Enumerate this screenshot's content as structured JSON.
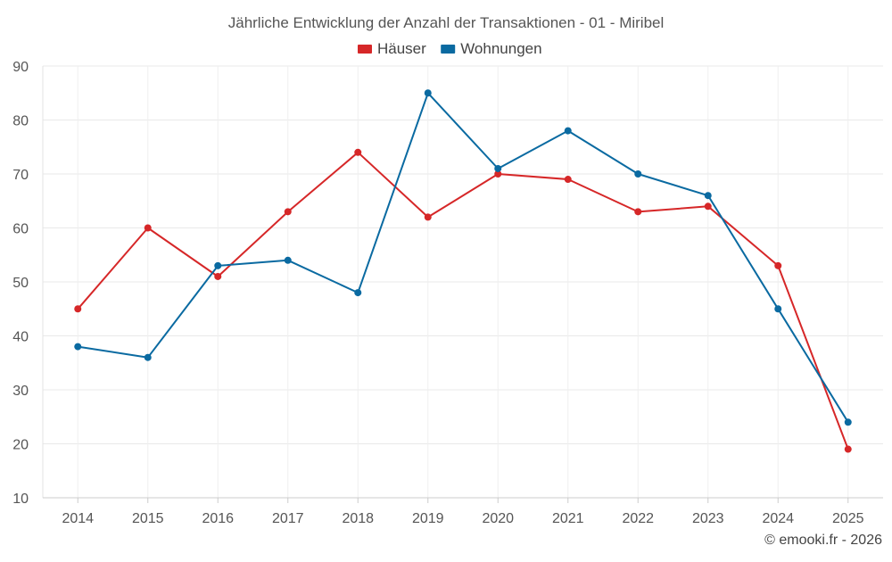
{
  "chart_data": {
    "type": "line",
    "title": "Jährliche Entwicklung der Anzahl der Transaktionen - 01 - Miribel",
    "xlabel": "",
    "ylabel": "",
    "categories": [
      "2014",
      "2015",
      "2016",
      "2017",
      "2018",
      "2019",
      "2020",
      "2021",
      "2022",
      "2023",
      "2024",
      "2025"
    ],
    "ylim": [
      10,
      90
    ],
    "yticks": [
      10,
      20,
      30,
      40,
      50,
      60,
      70,
      80,
      90
    ],
    "grid": true,
    "legend_position": "top-center",
    "series": [
      {
        "name": "Häuser",
        "color": "#d62728",
        "values": [
          45,
          60,
          51,
          63,
          74,
          62,
          70,
          69,
          63,
          64,
          53,
          19
        ]
      },
      {
        "name": "Wohnungen",
        "color": "#0a6aa1",
        "values": [
          38,
          36,
          53,
          54,
          48,
          85,
          71,
          78,
          70,
          66,
          45,
          24
        ]
      }
    ],
    "credit": "© emooki.fr - 2026"
  }
}
